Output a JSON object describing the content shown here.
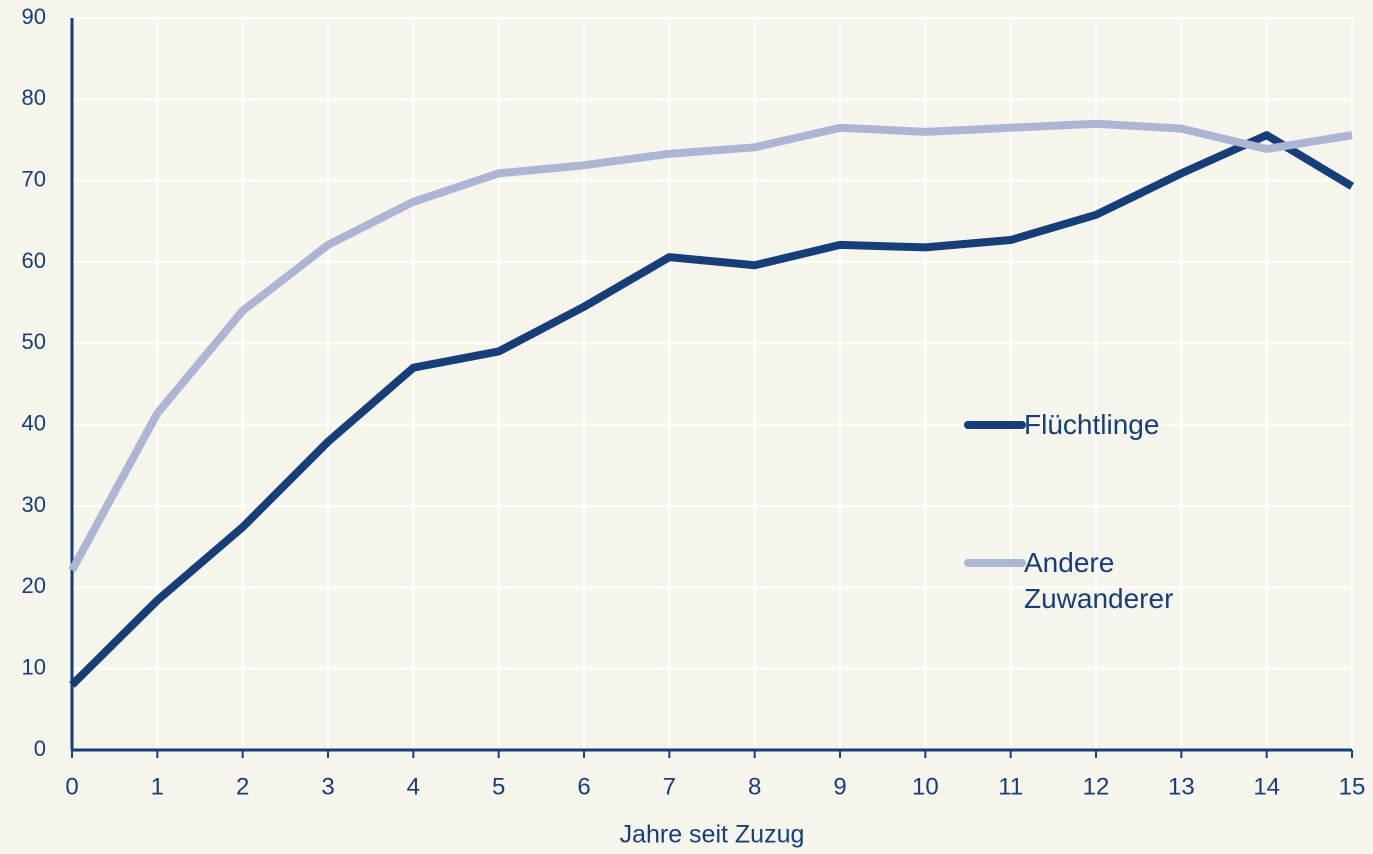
{
  "chart_data": {
    "type": "line",
    "x": [
      0,
      1,
      2,
      3,
      4,
      5,
      6,
      7,
      8,
      9,
      10,
      11,
      12,
      13,
      14,
      15
    ],
    "xlabel": "Jahre seit Zuzug",
    "xlim": [
      0,
      15
    ],
    "xticks": [
      0,
      1,
      2,
      3,
      4,
      5,
      6,
      7,
      8,
      9,
      10,
      11,
      12,
      13,
      14,
      15
    ],
    "ylim": [
      0,
      90
    ],
    "yticks": [
      0,
      10,
      20,
      30,
      40,
      50,
      60,
      70,
      80,
      90
    ],
    "grid": true,
    "legend": "right",
    "series": [
      {
        "name": "Flüchtlinge",
        "color": "#163f7a",
        "values": [
          8,
          18.4,
          27.4,
          37.9,
          47,
          49,
          54.5,
          60.6,
          59.6,
          62.1,
          61.8,
          62.7,
          65.8,
          70.9,
          75.6,
          69.3
        ]
      },
      {
        "name": "Andere Zuwanderer",
        "color": "#adb5d4",
        "values": [
          22.1,
          41.4,
          54,
          62.1,
          67.4,
          70.9,
          71.9,
          73.3,
          74.1,
          76.5,
          76,
          76.5,
          77,
          76.4,
          73.9,
          75.6
        ]
      }
    ]
  }
}
